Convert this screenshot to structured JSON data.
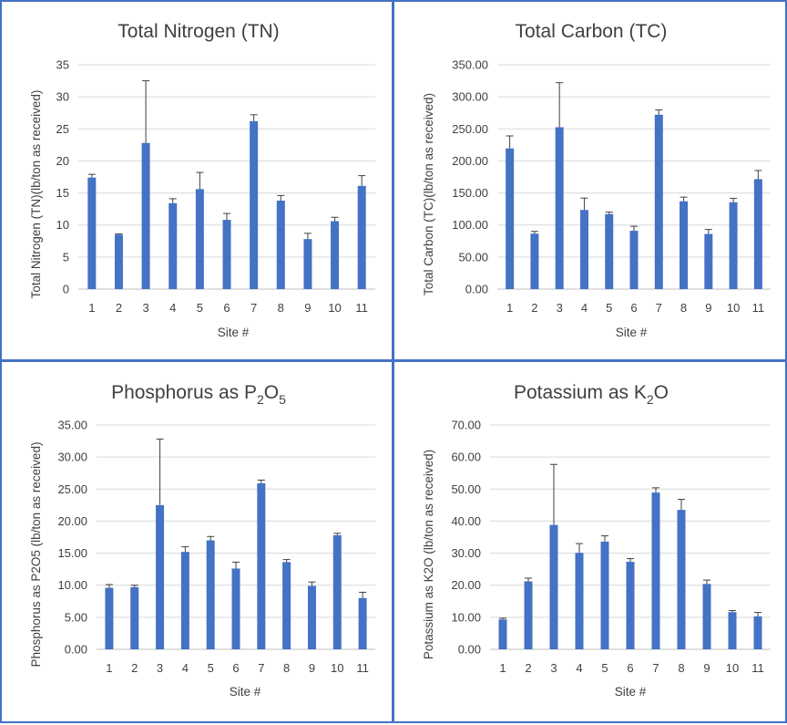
{
  "chart_data": [
    {
      "type": "bar",
      "title": "Total Nitrogen (TN)",
      "xlabel": "Site #",
      "ylabel": "Total Nitrogen (TN)(lb/ton as received)",
      "categories": [
        "1",
        "2",
        "3",
        "4",
        "5",
        "6",
        "7",
        "8",
        "9",
        "10",
        "11"
      ],
      "values": [
        17.4,
        8.5,
        22.8,
        13.4,
        15.6,
        10.8,
        26.2,
        13.8,
        7.8,
        10.6,
        16.1
      ],
      "errors": [
        0.5,
        0.1,
        9.7,
        0.7,
        2.6,
        1.0,
        1.0,
        0.8,
        0.9,
        0.6,
        1.6
      ],
      "ylim": [
        0,
        35
      ],
      "yticks": [
        "0",
        "5",
        "10",
        "15",
        "20",
        "25",
        "30",
        "35"
      ],
      "grid": true,
      "bar_color": "#4472c4"
    },
    {
      "type": "bar",
      "title": "Total Carbon (TC)",
      "xlabel": "Site #",
      "ylabel": "Total Carbon (TC)(lb/ton as received)",
      "categories": [
        "1",
        "2",
        "3",
        "4",
        "5",
        "6",
        "7",
        "8",
        "9",
        "10",
        "11"
      ],
      "values": [
        219.5,
        86.5,
        252.5,
        123.5,
        117.0,
        91.0,
        272.0,
        137.0,
        86.0,
        135.5,
        171.5
      ],
      "errors": [
        19.5,
        3.5,
        69.5,
        18.5,
        3.0,
        7.0,
        7.5,
        6.5,
        7.0,
        6.0,
        13.5
      ],
      "ylim": [
        0,
        350
      ],
      "yticks": [
        "0.00",
        "50.00",
        "100.00",
        "150.00",
        "200.00",
        "250.00",
        "300.00",
        "350.00"
      ],
      "grid": true,
      "bar_color": "#4472c4"
    },
    {
      "type": "bar",
      "title_main": "Phosphorus as P",
      "title_sub1": "2",
      "title_mid": "O",
      "title_sub2": "5",
      "xlabel": "Site #",
      "ylabel": "Phosphorus as P2O5 (lb/ton as received)",
      "categories": [
        "1",
        "2",
        "3",
        "4",
        "5",
        "6",
        "7",
        "8",
        "9",
        "10",
        "11"
      ],
      "values": [
        9.6,
        9.7,
        22.5,
        15.2,
        17.0,
        12.6,
        25.9,
        13.6,
        9.9,
        17.8,
        8.0
      ],
      "errors": [
        0.5,
        0.3,
        10.3,
        0.8,
        0.6,
        1.0,
        0.5,
        0.4,
        0.6,
        0.3,
        0.9
      ],
      "ylim": [
        0,
        35
      ],
      "yticks": [
        "0.00",
        "5.00",
        "10.00",
        "15.00",
        "20.00",
        "25.00",
        "30.00",
        "35.00"
      ],
      "grid": true,
      "bar_color": "#4472c4"
    },
    {
      "type": "bar",
      "title_main": "Potassium as K",
      "title_sub1": "2",
      "title_mid": "O",
      "title_sub2": "",
      "xlabel": "Site #",
      "ylabel": "Potassium as K2O (lb/ton as received)",
      "categories": [
        "1",
        "2",
        "3",
        "4",
        "5",
        "6",
        "7",
        "8",
        "9",
        "10",
        "11"
      ],
      "values": [
        9.3,
        21.2,
        38.8,
        30.1,
        33.6,
        27.3,
        48.9,
        43.5,
        20.4,
        11.6,
        10.3
      ],
      "errors": [
        0.4,
        1.0,
        18.9,
        2.9,
        1.8,
        1.0,
        1.5,
        3.3,
        1.2,
        0.5,
        1.2
      ],
      "ylim": [
        0,
        70
      ],
      "yticks": [
        "0.00",
        "10.00",
        "20.00",
        "30.00",
        "40.00",
        "50.00",
        "60.00",
        "70.00"
      ],
      "grid": true,
      "bar_color": "#4472c4"
    }
  ]
}
